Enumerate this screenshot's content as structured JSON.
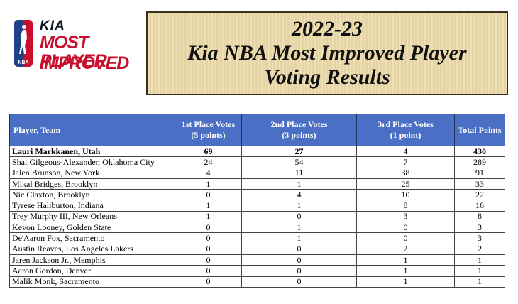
{
  "logo": {
    "badge_text": "NBA",
    "brand": "KIA",
    "line1": "MOST IMPROVED",
    "line2": "PLAYER"
  },
  "title": {
    "line1": "2022-23",
    "line2": "Kia NBA Most Improved Player",
    "line3": "Voting Results"
  },
  "table": {
    "headers": {
      "player": "Player, Team",
      "first": [
        "1st Place Votes",
        "(5 points)"
      ],
      "second": [
        "2nd Place Votes",
        "(3 points)"
      ],
      "third": [
        "3rd Place Votes",
        "(1 point)"
      ],
      "total": "Total Points"
    },
    "rows": [
      {
        "player": "Lauri Markkanen, Utah",
        "first": "69",
        "second": "27",
        "third": "4",
        "total": "430"
      },
      {
        "player": "Shai Gilgeous-Alexander, Oklahoma City",
        "first": "24",
        "second": "54",
        "third": "7",
        "total": "289"
      },
      {
        "player": "Jalen Brunson, New York",
        "first": "4",
        "second": "11",
        "third": "38",
        "total": "91"
      },
      {
        "player": "Mikal Bridges, Brooklyn",
        "first": "1",
        "second": "1",
        "third": "25",
        "total": "33"
      },
      {
        "player": "Nic Claxton, Brooklyn",
        "first": "0",
        "second": "4",
        "third": "10",
        "total": "22"
      },
      {
        "player": "Tyrese Haliburton, Indiana",
        "first": "1",
        "second": "1",
        "third": "8",
        "total": "16"
      },
      {
        "player": "Trey Murphy III, New Orleans",
        "first": "1",
        "second": "0",
        "third": "3",
        "total": "8"
      },
      {
        "player": "Kevon Looney, Golden State",
        "first": "0",
        "second": "1",
        "third": "0",
        "total": "3"
      },
      {
        "player": "De'Aaron Fox, Sacramento",
        "first": "0",
        "second": "1",
        "third": "0",
        "total": "3"
      },
      {
        "player": "Austin Reaves, Los Angeles Lakers",
        "first": "0",
        "second": "0",
        "third": "2",
        "total": "2"
      },
      {
        "player": "Jaren Jackson Jr., Memphis",
        "first": "0",
        "second": "0",
        "third": "1",
        "total": "1"
      },
      {
        "player": "Aaron Gordon, Denver",
        "first": "0",
        "second": "0",
        "third": "1",
        "total": "1"
      },
      {
        "player": "Malik Monk, Sacramento",
        "first": "0",
        "second": "0",
        "third": "1",
        "total": "1"
      }
    ]
  },
  "colors": {
    "header_bg": "#4a6fc4",
    "title_bg": "#ecdcab",
    "logo_red": "#c8102e",
    "logo_blue": "#1d428a"
  }
}
